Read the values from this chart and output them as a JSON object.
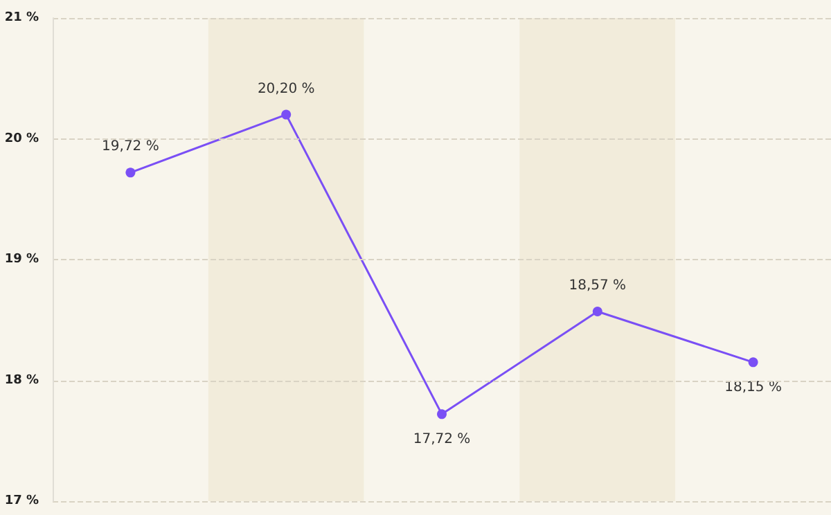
{
  "chart_data": {
    "type": "line",
    "categories": [
      null,
      null,
      null,
      null,
      null
    ],
    "values": [
      19.72,
      20.2,
      17.72,
      18.57,
      18.15
    ],
    "value_labels": [
      "19,72 %",
      "20,20 %",
      "17,72 %",
      "18,57 %",
      "18,15 %"
    ],
    "color": "#7a4ff5",
    "marker": "circle",
    "line_style": "solid",
    "ylim": [
      17,
      21
    ],
    "yticks": [
      {
        "value": 17,
        "label": "17 %"
      },
      {
        "value": 18,
        "label": "18 %"
      },
      {
        "value": 19,
        "label": "19 %"
      },
      {
        "value": 20,
        "label": "20 %"
      },
      {
        "value": 21,
        "label": "21 %"
      }
    ],
    "tick_labels": "y",
    "grid": "y"
  }
}
